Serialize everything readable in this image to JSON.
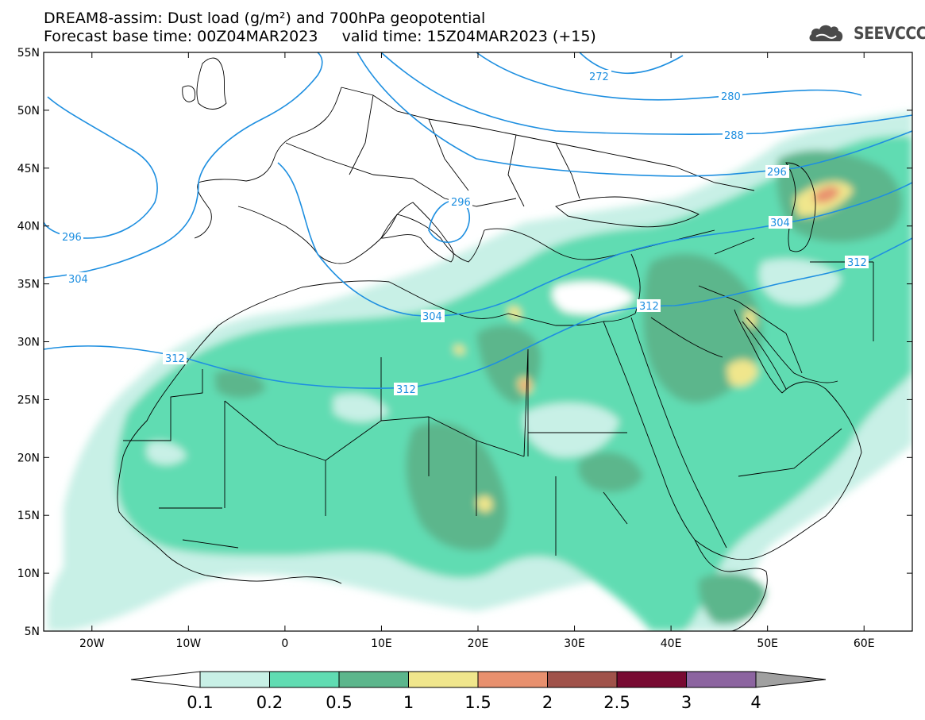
{
  "header": {
    "title_line1": "DREAM8-assim: Dust load (g/m²) and 700hPa geopotential",
    "title_line2": "Forecast base time: 00Z04MAR2023     valid time: 15Z04MAR2023 (+15)",
    "logo_text": "SEEVCCC",
    "logo_icon": "cloud-logo-icon"
  },
  "map": {
    "lon_ticks": [
      "20W",
      "10W",
      "0",
      "10E",
      "20E",
      "30E",
      "40E",
      "50E",
      "60E"
    ],
    "lat_ticks": [
      "55N",
      "50N",
      "45N",
      "40N",
      "35N",
      "30N",
      "25N",
      "20N",
      "15N",
      "10N",
      "5N"
    ],
    "contour_labels": [
      "272",
      "280",
      "288",
      "296",
      "296",
      "296",
      "304",
      "304",
      "304",
      "312",
      "312",
      "312",
      "312"
    ],
    "contour_color": "#1e8fe0"
  },
  "colorbar": {
    "levels": [
      "0.1",
      "0.2",
      "0.5",
      "1",
      "1.5",
      "2",
      "2.5",
      "3",
      "4"
    ],
    "colors": [
      "#c8f0e6",
      "#60dcb2",
      "#5cb68c",
      "#f0e68c",
      "#e8906e",
      "#a0524a",
      "#780a32",
      "#8c64a0"
    ],
    "under_color": "#ffffff",
    "over_color": "#a0a0a0"
  }
}
